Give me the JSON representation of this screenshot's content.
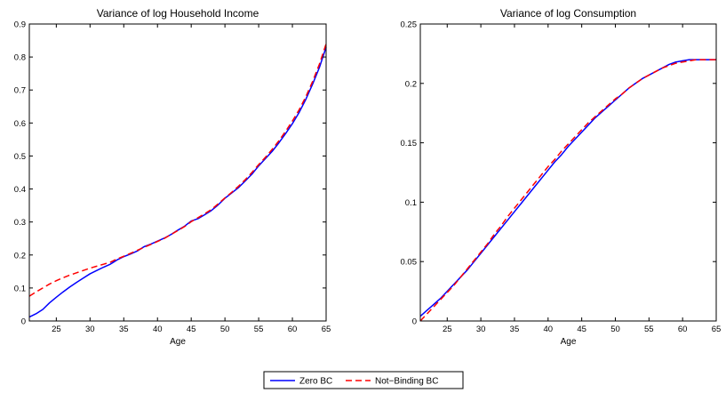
{
  "legend": {
    "entries": [
      {
        "label": "Zero BC",
        "color": "#0000ff",
        "dash": "solid"
      },
      {
        "label": "Not−Binding BC",
        "color": "#ff0000",
        "dash": "dashed"
      }
    ],
    "placement": "bottom-center"
  },
  "chart_data": [
    {
      "type": "line",
      "title": "Variance of log Household Income",
      "xlabel": "Age",
      "ylabel": "",
      "xlim": [
        21,
        65
      ],
      "ylim": [
        0,
        0.9
      ],
      "xticks": [
        25,
        30,
        35,
        40,
        45,
        50,
        55,
        60,
        65
      ],
      "yticks": [
        0,
        0.1,
        0.2,
        0.3,
        0.4,
        0.5,
        0.6,
        0.7,
        0.8,
        0.9
      ],
      "xtick_labels": [
        "25",
        "30",
        "35",
        "40",
        "45",
        "50",
        "55",
        "60",
        "65"
      ],
      "ytick_labels": [
        "0",
        "0.1",
        "0.2",
        "0.3",
        "0.4",
        "0.5",
        "0.6",
        "0.7",
        "0.8",
        "0.9"
      ],
      "grid": false,
      "x": [
        21,
        22,
        23,
        24,
        25,
        26,
        27,
        28,
        29,
        30,
        31,
        32,
        33,
        34,
        35,
        36,
        37,
        38,
        39,
        40,
        41,
        42,
        43,
        44,
        45,
        46,
        47,
        48,
        49,
        50,
        51,
        52,
        53,
        54,
        55,
        56,
        57,
        58,
        59,
        60,
        61,
        62,
        63,
        64,
        65
      ],
      "series": [
        {
          "name": "Zero BC",
          "color": "#0000ff",
          "dash": "solid",
          "values": [
            0.012,
            0.022,
            0.035,
            0.055,
            0.072,
            0.088,
            0.103,
            0.117,
            0.13,
            0.143,
            0.153,
            0.163,
            0.172,
            0.185,
            0.195,
            0.203,
            0.212,
            0.225,
            0.233,
            0.242,
            0.251,
            0.262,
            0.275,
            0.287,
            0.303,
            0.31,
            0.322,
            0.335,
            0.352,
            0.372,
            0.388,
            0.404,
            0.424,
            0.445,
            0.47,
            0.492,
            0.514,
            0.54,
            0.568,
            0.598,
            0.632,
            0.672,
            0.718,
            0.768,
            0.83
          ]
        },
        {
          "name": "Not−Binding BC",
          "color": "#ff0000",
          "dash": "dashed",
          "values": [
            0.075,
            0.088,
            0.1,
            0.112,
            0.122,
            0.131,
            0.139,
            0.146,
            0.153,
            0.16,
            0.166,
            0.172,
            0.178,
            0.188,
            0.196,
            0.205,
            0.214,
            0.223,
            0.232,
            0.241,
            0.25,
            0.262,
            0.274,
            0.286,
            0.301,
            0.313,
            0.325,
            0.338,
            0.355,
            0.373,
            0.39,
            0.408,
            0.428,
            0.45,
            0.474,
            0.496,
            0.52,
            0.546,
            0.575,
            0.606,
            0.64,
            0.68,
            0.726,
            0.778,
            0.84
          ]
        }
      ]
    },
    {
      "type": "line",
      "title": "Variance of log Consumption",
      "xlabel": "Age",
      "ylabel": "",
      "xlim": [
        21,
        65
      ],
      "ylim": [
        0,
        0.25
      ],
      "xticks": [
        25,
        30,
        35,
        40,
        45,
        50,
        55,
        60,
        65
      ],
      "yticks": [
        0,
        0.05,
        0.1,
        0.15,
        0.2,
        0.25
      ],
      "xtick_labels": [
        "25",
        "30",
        "35",
        "40",
        "45",
        "50",
        "55",
        "60",
        "65"
      ],
      "ytick_labels": [
        "0",
        "0.05",
        "0.1",
        "0.15",
        "0.2",
        "0.25"
      ],
      "grid": false,
      "x": [
        21,
        22,
        23,
        24,
        25,
        26,
        27,
        28,
        29,
        30,
        31,
        32,
        33,
        34,
        35,
        36,
        37,
        38,
        39,
        40,
        41,
        42,
        43,
        44,
        45,
        46,
        47,
        48,
        49,
        50,
        51,
        52,
        53,
        54,
        55,
        56,
        57,
        58,
        59,
        60,
        61,
        62,
        63,
        64,
        65
      ],
      "series": [
        {
          "name": "Zero BC",
          "color": "#0000ff",
          "dash": "solid",
          "values": [
            0.004,
            0.009,
            0.014,
            0.019,
            0.025,
            0.031,
            0.037,
            0.043,
            0.05,
            0.057,
            0.064,
            0.071,
            0.078,
            0.085,
            0.092,
            0.099,
            0.106,
            0.113,
            0.12,
            0.127,
            0.134,
            0.14,
            0.147,
            0.153,
            0.159,
            0.165,
            0.171,
            0.176,
            0.181,
            0.186,
            0.191,
            0.196,
            0.2,
            0.204,
            0.207,
            0.21,
            0.213,
            0.216,
            0.218,
            0.219,
            0.22,
            0.22,
            0.22,
            0.22,
            0.22
          ]
        },
        {
          "name": "Not−Binding BC",
          "color": "#ff0000",
          "dash": "dashed",
          "values": [
            0.0,
            0.006,
            0.012,
            0.018,
            0.024,
            0.03,
            0.037,
            0.044,
            0.051,
            0.058,
            0.065,
            0.073,
            0.08,
            0.088,
            0.095,
            0.102,
            0.109,
            0.116,
            0.123,
            0.13,
            0.136,
            0.143,
            0.149,
            0.155,
            0.161,
            0.167,
            0.172,
            0.177,
            0.182,
            0.187,
            0.191,
            0.196,
            0.2,
            0.204,
            0.207,
            0.21,
            0.213,
            0.215,
            0.217,
            0.218,
            0.219,
            0.22,
            0.22,
            0.22,
            0.22
          ]
        }
      ]
    }
  ]
}
